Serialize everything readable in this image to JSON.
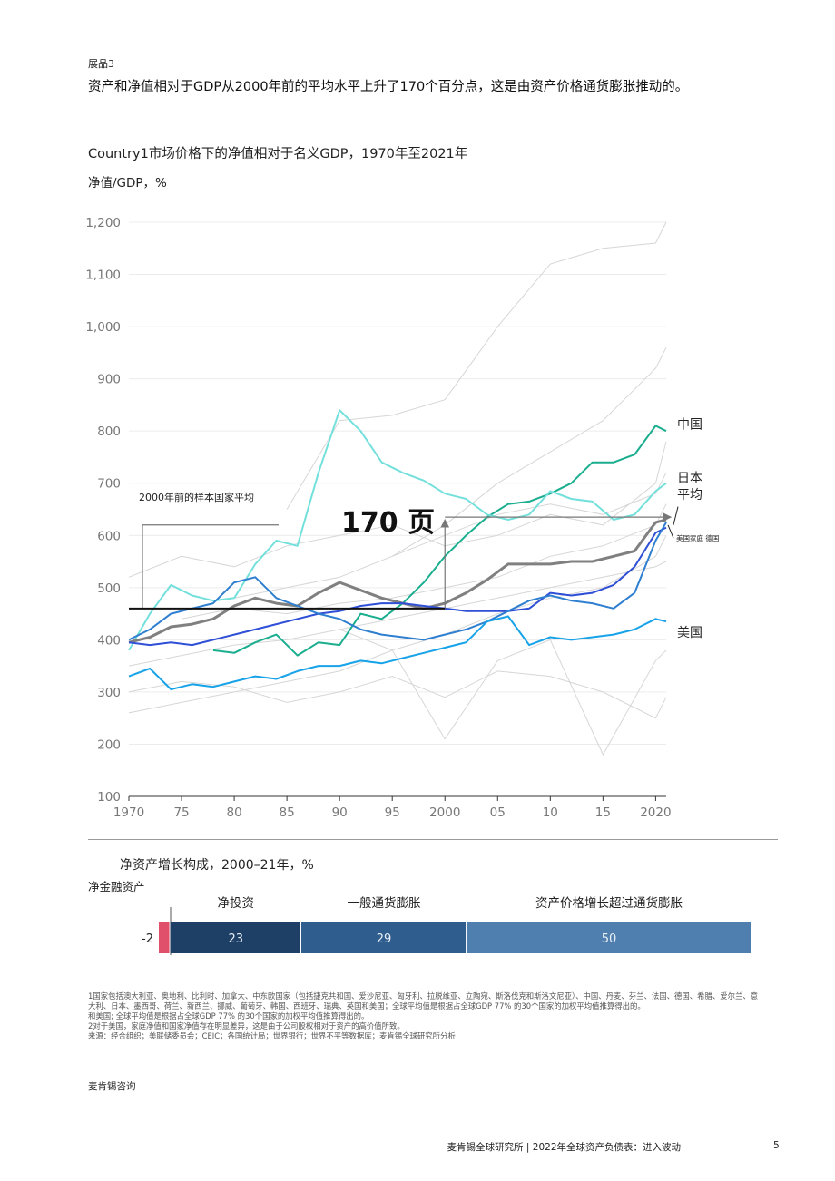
{
  "header": {
    "exhibit": "展品3",
    "headline": "资产和净值相对于GDP从2000年前的平均水平上升了170个百分点，这是由资产价格通货膨胀推动的。"
  },
  "colors": {
    "china": "#1aae8f",
    "japan": "#74e0dc",
    "average": "#808080",
    "us_household": "#2e4fd6",
    "germany": "#2f7fd0",
    "us": "#18a3e8",
    "other": "#d6d6d6",
    "net_investment": "#1e3f66",
    "general_inflation": "#2e5d8e",
    "asset_price": "#4f7fae",
    "negative": "#e0506a"
  },
  "chart_data": [
    {
      "type": "line",
      "title": "Country1市场价格下的净值相对于名义GDP，1970年至2021年",
      "ylabel": "净值/GDP，%",
      "ylim": [
        100,
        1200
      ],
      "xlim": [
        1970,
        2021
      ],
      "yticks": [
        "1,200",
        "1,100",
        "1,000",
        "900",
        "800",
        "700",
        "600",
        "500",
        "400",
        "300",
        "200",
        "100"
      ],
      "xticks": [
        {
          "value": 1970,
          "label": "1970"
        },
        {
          "value": 1975,
          "label": "75"
        },
        {
          "value": 1980,
          "label": "80"
        },
        {
          "value": 1985,
          "label": "85"
        },
        {
          "value": 1990,
          "label": "90"
        },
        {
          "value": 1995,
          "label": "95"
        },
        {
          "value": 2000,
          "label": "2000"
        },
        {
          "value": 2005,
          "label": "05"
        },
        {
          "value": 2010,
          "label": "10"
        },
        {
          "value": 2015,
          "label": "15"
        },
        {
          "value": 2020,
          "label": "2020"
        }
      ],
      "pre2000_average": {
        "label": "2000年前的样本国家平均",
        "value": 460,
        "bracket_top": 620
      },
      "increase_label": "170 页",
      "increase_from": 460,
      "increase_to": 635,
      "series": [
        {
          "name": "中国",
          "color_key": "china",
          "x": [
            1978,
            1980,
            1982,
            1984,
            1986,
            1988,
            1990,
            1992,
            1994,
            1996,
            1998,
            2000,
            2002,
            2004,
            2006,
            2008,
            2010,
            2012,
            2014,
            2016,
            2018,
            2020,
            2021
          ],
          "values": [
            380,
            375,
            395,
            410,
            370,
            395,
            390,
            450,
            440,
            470,
            510,
            560,
            600,
            635,
            660,
            665,
            680,
            700,
            740,
            740,
            755,
            810,
            800
          ]
        },
        {
          "name": "日本",
          "color_key": "japan",
          "x": [
            1970,
            1972,
            1974,
            1976,
            1978,
            1980,
            1982,
            1984,
            1986,
            1988,
            1990,
            1992,
            1994,
            1996,
            1998,
            2000,
            2002,
            2004,
            2006,
            2008,
            2010,
            2012,
            2014,
            2016,
            2018,
            2020,
            2021
          ],
          "values": [
            380,
            450,
            505,
            485,
            475,
            480,
            545,
            590,
            580,
            720,
            840,
            800,
            740,
            720,
            705,
            680,
            670,
            640,
            630,
            640,
            685,
            670,
            665,
            630,
            640,
            685,
            700
          ]
        },
        {
          "name": "平均",
          "color_key": "average",
          "x": [
            1970,
            1972,
            1974,
            1976,
            1978,
            1980,
            1982,
            1984,
            1986,
            1988,
            1990,
            1992,
            1994,
            1996,
            1998,
            2000,
            2002,
            2004,
            2006,
            2008,
            2010,
            2012,
            2014,
            2016,
            2018,
            2020,
            2021
          ],
          "values": [
            395,
            405,
            425,
            430,
            440,
            465,
            480,
            470,
            465,
            490,
            510,
            495,
            480,
            470,
            460,
            470,
            490,
            515,
            545,
            545,
            545,
            550,
            550,
            560,
            570,
            625,
            630
          ]
        },
        {
          "name": "美国家庭",
          "color_key": "us_household",
          "x": [
            1970,
            1972,
            1974,
            1976,
            1978,
            1980,
            1982,
            1984,
            1986,
            1988,
            1990,
            1992,
            1994,
            1996,
            1998,
            2000,
            2002,
            2004,
            2006,
            2008,
            2010,
            2012,
            2014,
            2016,
            2018,
            2020,
            2021
          ],
          "values": [
            395,
            390,
            395,
            390,
            400,
            410,
            420,
            430,
            440,
            450,
            455,
            465,
            470,
            470,
            465,
            460,
            455,
            455,
            455,
            460,
            490,
            485,
            490,
            505,
            540,
            605,
            615
          ]
        },
        {
          "name": "德国",
          "color_key": "germany",
          "x": [
            1970,
            1972,
            1974,
            1976,
            1978,
            1980,
            1982,
            1984,
            1986,
            1988,
            1990,
            1992,
            1994,
            1996,
            1998,
            2000,
            2002,
            2004,
            2006,
            2008,
            2010,
            2012,
            2014,
            2016,
            2018,
            2020,
            2021
          ],
          "values": [
            400,
            420,
            450,
            460,
            470,
            510,
            520,
            480,
            465,
            450,
            440,
            420,
            410,
            405,
            400,
            410,
            420,
            435,
            455,
            475,
            485,
            475,
            470,
            460,
            490,
            590,
            625
          ]
        },
        {
          "name": "美国",
          "color_key": "us",
          "x": [
            1970,
            1972,
            1974,
            1976,
            1978,
            1980,
            1982,
            1984,
            1986,
            1988,
            1990,
            1992,
            1994,
            1996,
            1998,
            2000,
            2002,
            2004,
            2006,
            2008,
            2010,
            2012,
            2014,
            2016,
            2018,
            2020,
            2021
          ],
          "values": [
            330,
            345,
            305,
            315,
            310,
            320,
            330,
            325,
            340,
            350,
            350,
            360,
            355,
            365,
            375,
            385,
            395,
            435,
            445,
            390,
            405,
            400,
            405,
            410,
            420,
            440,
            435
          ]
        }
      ],
      "other_series": [
        {
          "x": [
            1985,
            1990,
            1995,
            2000,
            2005,
            2010,
            2015,
            2020,
            2021
          ],
          "values": [
            650,
            820,
            830,
            860,
            1000,
            1120,
            1150,
            1160,
            1200
          ]
        },
        {
          "x": [
            1995,
            2000,
            2005,
            2010,
            2015,
            2020,
            2021
          ],
          "values": [
            560,
            620,
            700,
            760,
            820,
            920,
            960
          ]
        },
        {
          "x": [
            1970,
            1975,
            1980,
            1985,
            1990,
            1995,
            2000,
            2005,
            2010,
            2015,
            2020,
            2021
          ],
          "values": [
            520,
            560,
            540,
            580,
            600,
            620,
            580,
            600,
            640,
            620,
            700,
            780
          ]
        },
        {
          "x": [
            1970,
            1975,
            1980,
            1985,
            1990,
            1995,
            2000,
            2005,
            2010,
            2015,
            2020,
            2021
          ],
          "values": [
            260,
            280,
            300,
            320,
            340,
            380,
            410,
            450,
            480,
            500,
            560,
            600
          ]
        },
        {
          "x": [
            1990,
            1995,
            2000,
            2005,
            2010,
            2015,
            2020,
            2021
          ],
          "values": [
            420,
            380,
            210,
            360,
            400,
            180,
            360,
            380
          ]
        },
        {
          "x": [
            1970,
            1975,
            1980,
            1985,
            1990,
            1995,
            2000,
            2005,
            2010,
            2015,
            2020,
            2021
          ],
          "values": [
            300,
            320,
            310,
            280,
            300,
            330,
            290,
            340,
            330,
            300,
            250,
            290
          ]
        },
        {
          "x": [
            1975,
            1980,
            1985,
            1990,
            1995,
            2000,
            2005,
            2010,
            2015,
            2020,
            2021
          ],
          "values": [
            440,
            460,
            450,
            470,
            480,
            500,
            520,
            560,
            580,
            620,
            660
          ]
        },
        {
          "x": [
            1980,
            1985,
            1990,
            1995,
            2000,
            2005,
            2010,
            2015,
            2020,
            2021
          ],
          "values": [
            480,
            500,
            520,
            560,
            600,
            640,
            660,
            640,
            680,
            720
          ]
        },
        {
          "x": [
            1970,
            1975,
            1980,
            1985,
            1990,
            1995,
            2000,
            2005,
            2010,
            2015,
            2020,
            2021
          ],
          "values": [
            350,
            370,
            390,
            400,
            420,
            440,
            460,
            480,
            500,
            520,
            540,
            550
          ]
        }
      ],
      "annotations": [
        "美国家庭 德国"
      ]
    },
    {
      "type": "bar",
      "title": "净资产增长构成，2000–21年，%",
      "stacked": true,
      "categories": [
        "净金融资产",
        "净投资",
        "一般通货膨胀",
        "资产价格增长超过通货膨胀"
      ],
      "values": [
        -2,
        23,
        29,
        50
      ]
    }
  ],
  "bar_chart": {
    "title": "净资产增长构成，2000–21年，%",
    "sublabel": "净金融资产",
    "segments": [
      {
        "label": "",
        "value": -2,
        "display": "-2",
        "color_key": "negative"
      },
      {
        "label": "净投资",
        "value": 23,
        "display": "23",
        "color_key": "net_investment"
      },
      {
        "label": "一般通货膨胀",
        "value": 29,
        "display": "29",
        "color_key": "general_inflation"
      },
      {
        "label": "资产价格增长超过通货膨胀",
        "value": 50,
        "display": "50",
        "color_key": "asset_price"
      }
    ]
  },
  "notes": [
    "1国家包括澳大利亚、奥地利、比利时、加拿大、中东欧国家（包括捷克共和国、爱沙尼亚、匈牙利、拉脱维亚、立陶宛、斯洛伐克和斯洛文尼亚）、中国、丹麦、芬兰、法国、德国、希腊、爱尔兰、意大利、日本、墨西哥、荷兰、新西兰、挪威、葡萄牙、韩国、西班牙、瑞典、英国和美国；全球平均值是根据占全球GDP 77% 的30个国家的加权平均值推算得出的。",
    "和美国; 全球平均值是根据占全球GDP 77% 的30个国家的加权平均值推算得出的。",
    "2对于美国，家庭净值和国家净值存在明显差异，这是由于公司股权相对于资产的高价值所致。",
    "来源：经合组织；美联储委员会；CEIC；各国统计局；世界银行；世界不平等数据库；麦肯锡全球研究所分析"
  ],
  "footer": {
    "brand": "麦肯锡咨询",
    "text": "麦肯锡全球研究所 | 2022年全球资产负债表：进入波动",
    "page": "5"
  }
}
